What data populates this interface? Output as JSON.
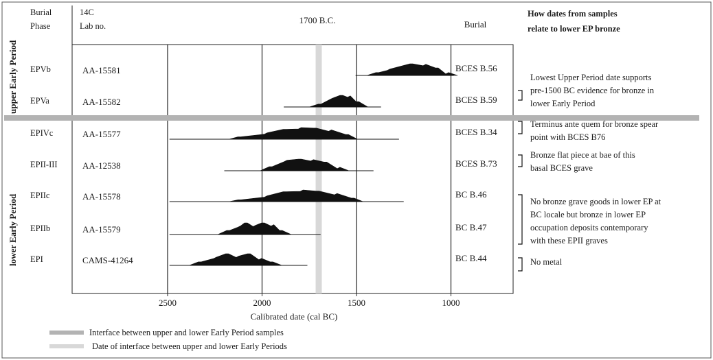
{
  "header": {
    "burial_phase": "Burial Phase",
    "lab_no": "14C Lab no.",
    "date_1700": "1700 B.C.",
    "burial": "Burial",
    "question": "How dates from samples relate to lower EP bronze"
  },
  "periods": {
    "upper": "upper Early Period",
    "lower": "lower Early Period"
  },
  "chart_data": {
    "type": "probability-distribution",
    "xlabel": "Calibrated date (cal BC)",
    "xlim": [
      2750,
      850
    ],
    "x_ticks": [
      2500,
      2000,
      1500,
      1000
    ],
    "x_tick_labels": [
      "2500",
      "2000",
      "1500",
      "1000"
    ],
    "reference_lines": [
      2500,
      2000,
      1500,
      1000
    ],
    "interface_date": 1700,
    "rows": [
      {
        "phase": "EPVb",
        "lab": "AA-15581",
        "burial": "BCES B.56",
        "range": [
          1505,
          985
        ],
        "peaks": [
          [
            1390,
            0.25
          ],
          [
            1330,
            0.55
          ],
          [
            1210,
            1.0
          ],
          [
            1140,
            0.95
          ],
          [
            1075,
            0.65
          ],
          [
            1020,
            0.25
          ]
        ]
      },
      {
        "phase": "EPVa",
        "lab": "AA-15582",
        "burial": "BCES B.59",
        "range": [
          1885,
          1370
        ],
        "peaks": [
          [
            1695,
            0.25
          ],
          [
            1635,
            0.75
          ],
          [
            1580,
            1.0
          ],
          [
            1540,
            0.95
          ],
          [
            1495,
            0.45
          ]
        ]
      },
      {
        "phase": "EPIVc",
        "lab": "AA-15577",
        "burial": "BCES B.34",
        "range": [
          2490,
          1275
        ],
        "peaks": [
          [
            2120,
            0.2
          ],
          [
            1980,
            0.55
          ],
          [
            1880,
            0.85
          ],
          [
            1800,
            1.0
          ],
          [
            1720,
            0.95
          ],
          [
            1640,
            0.8
          ],
          [
            1550,
            0.4
          ]
        ]
      },
      {
        "phase": "EPII-III",
        "lab": "AA-12538",
        "burial": "BCES B.73",
        "range": [
          2200,
          1410
        ],
        "peaks": [
          [
            1955,
            0.35
          ],
          [
            1875,
            0.9
          ],
          [
            1800,
            1.0
          ],
          [
            1735,
            0.95
          ],
          [
            1665,
            0.75
          ],
          [
            1595,
            0.3
          ]
        ]
      },
      {
        "phase": "EPIIc",
        "lab": "AA-15578",
        "burial": "BC B.46",
        "range": [
          2490,
          1250
        ],
        "peaks": [
          [
            2120,
            0.15
          ],
          [
            1980,
            0.5
          ],
          [
            1880,
            0.85
          ],
          [
            1790,
            1.0
          ],
          [
            1705,
            0.9
          ],
          [
            1610,
            0.7
          ],
          [
            1520,
            0.3
          ]
        ]
      },
      {
        "phase": "EPIIb",
        "lab": "AA-15579",
        "burial": "BC B.47",
        "range": [
          2490,
          1690
        ],
        "peaks": [
          [
            2180,
            0.35
          ],
          [
            2120,
            0.75
          ],
          [
            2085,
            1.0
          ],
          [
            2040,
            0.8
          ],
          [
            1995,
            1.0
          ],
          [
            1945,
            0.85
          ],
          [
            1900,
            0.35
          ]
        ]
      },
      {
        "phase": "EPI",
        "lab": "CAMS-41264",
        "burial": "BC B.44",
        "range": [
          2490,
          1760
        ],
        "peaks": [
          [
            2330,
            0.3
          ],
          [
            2250,
            0.7
          ],
          [
            2185,
            1.0
          ],
          [
            2130,
            0.8
          ],
          [
            2070,
            1.0
          ],
          [
            2010,
            0.6
          ],
          [
            1950,
            0.3
          ]
        ]
      }
    ]
  },
  "annotations": [
    {
      "bracket_row": 1,
      "text": "Lowest Upper Period date supports pre-1500 BC evidence for bronze in lower Early Period"
    },
    {
      "bracket_row": 2,
      "text": "Terminus ante quem for bronze spear point with BCES B76"
    },
    {
      "bracket_row": 3,
      "text": "Bronze flat piece at bae of this basal BCES grave"
    },
    {
      "bracket_row": [
        4,
        5
      ],
      "text": "No bronze grave goods in lower EP at BC locale but bronze in lower EP occupation deposits contemporary with these EPII graves"
    },
    {
      "bracket_row": 6,
      "text": "No metal"
    }
  ],
  "legend": [
    {
      "label": "Interface between upper and lower Early Period samples",
      "color": "#b3b3b3"
    },
    {
      "label": "Date of interface between upper and lower Early Periods",
      "color": "#d8d8d8"
    }
  ],
  "colors": {
    "ink": "#1a1a1a",
    "interface_band": "#b3b3b3",
    "date_band": "#d8d8d8"
  }
}
